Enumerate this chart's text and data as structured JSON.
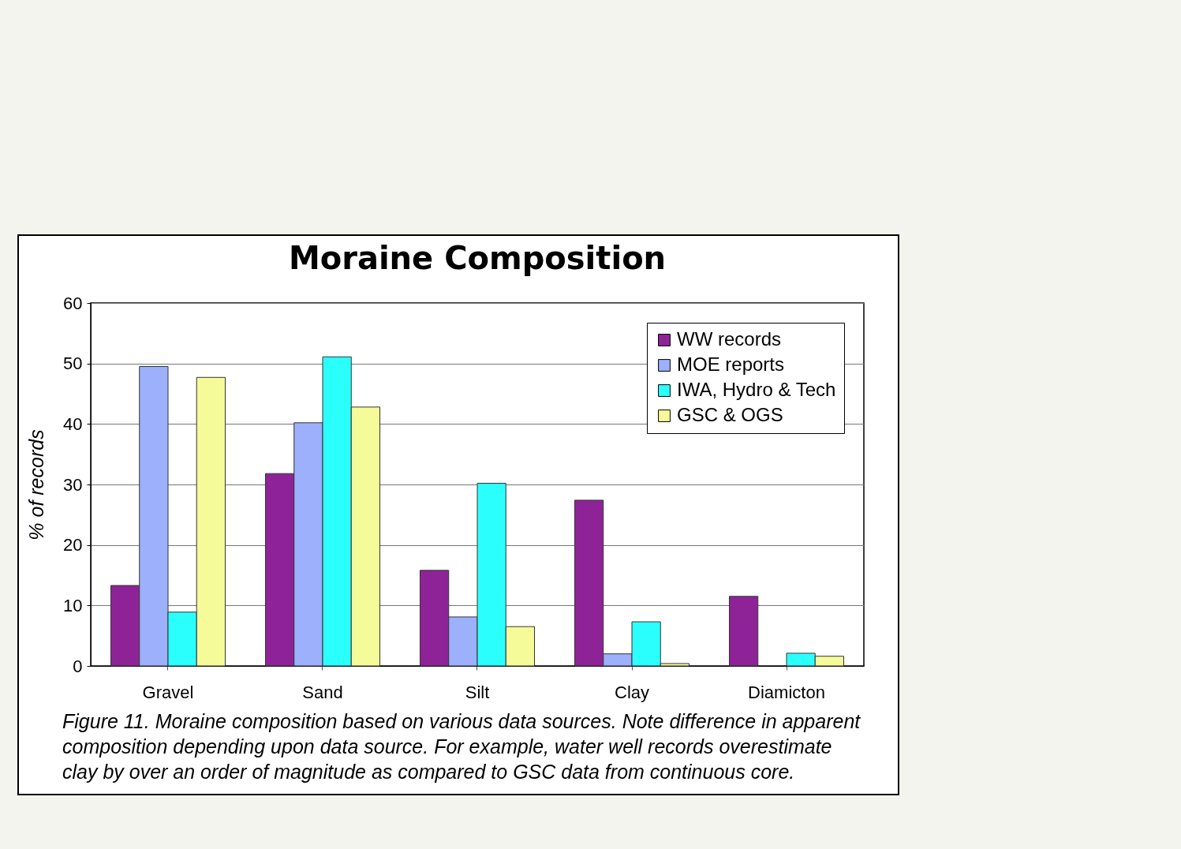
{
  "chart_data": {
    "type": "bar",
    "title": "Moraine Composition",
    "ylabel": "% of records",
    "categories": [
      "Gravel",
      "Sand",
      "Silt",
      "Clay",
      "Diamicton"
    ],
    "series": [
      {
        "name": "WW records",
        "color": "#8e2397",
        "values": [
          13.3,
          31.8,
          15.8,
          27.4,
          11.5
        ]
      },
      {
        "name": "MOE reports",
        "color": "#9cb0fc",
        "values": [
          49.5,
          40.2,
          8.1,
          2.0,
          null
        ]
      },
      {
        "name": "IWA, Hydro & Tech",
        "color": "#2bfffe",
        "values": [
          8.9,
          51.1,
          30.2,
          7.3,
          2.1
        ]
      },
      {
        "name": "GSC & OGS",
        "color": "#f6fb9a",
        "values": [
          47.7,
          42.8,
          6.5,
          0.4,
          1.6
        ]
      }
    ],
    "ylim": [
      0,
      60
    ],
    "yticks": [
      0,
      10,
      20,
      30,
      40,
      50,
      60
    ],
    "grid": "y",
    "legend": "top right",
    "annotations": [
      "Figure 11.  Moraine composition based on various data sources.  Note difference in apparent composition depending upon data source.  For example, water well records overestimate clay by over an order of magnitude as compared to GSC data from continuous core."
    ]
  }
}
